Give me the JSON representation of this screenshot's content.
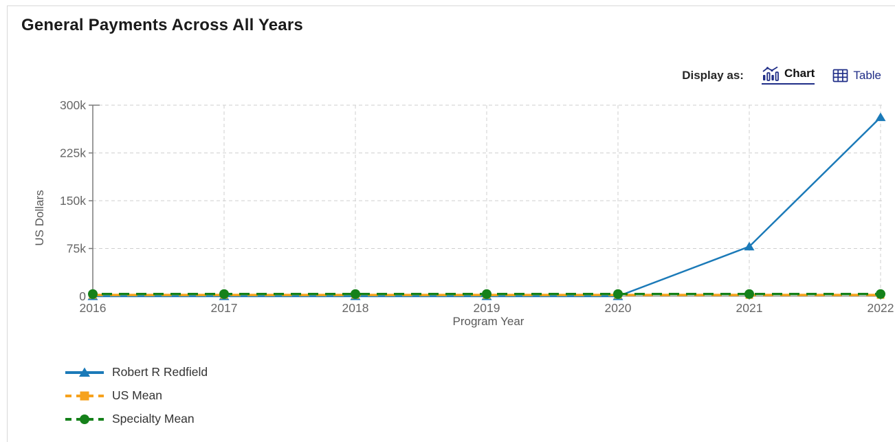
{
  "page": {
    "title": "General Payments Across All Years"
  },
  "display_as": {
    "label": "Display as:",
    "chart_label": "Chart",
    "table_label": "Table"
  },
  "colors": {
    "link_navy": "#1f2d87",
    "grid": "#cfcfcf",
    "axis": "#7a7a7a",
    "tick_text": "#666666",
    "series_blue": "#1b7ab8",
    "series_orange": "#f6a21d",
    "series_green": "#15811a"
  },
  "chart_data": {
    "type": "line",
    "title": "General Payments Across All Years",
    "xlabel": "Program Year",
    "ylabel": "US Dollars",
    "x": [
      2016,
      2017,
      2018,
      2019,
      2020,
      2021,
      2022
    ],
    "ylim": [
      0,
      300000
    ],
    "y_ticks": {
      "values": [
        0,
        75000,
        150000,
        225000,
        300000
      ],
      "labels": [
        "0",
        "75k",
        "150k",
        "225k",
        "300k"
      ]
    },
    "grid": true,
    "legend_position": "bottom-left",
    "series": [
      {
        "name": "Robert R Redfield",
        "color": "#1b7ab8",
        "line_style": "solid",
        "marker": "triangle",
        "values": [
          0,
          0,
          0,
          0,
          0,
          78000,
          281000
        ]
      },
      {
        "name": "US Mean",
        "color": "#f6a21d",
        "line_style": "dashed",
        "marker": "square",
        "values": [
          2000,
          2000,
          2000,
          2000,
          2000,
          2000,
          2000
        ]
      },
      {
        "name": "Specialty Mean",
        "color": "#15811a",
        "line_style": "dashed",
        "marker": "circle",
        "values": [
          3500,
          3500,
          3500,
          3500,
          3500,
          3500,
          3500
        ]
      }
    ]
  }
}
